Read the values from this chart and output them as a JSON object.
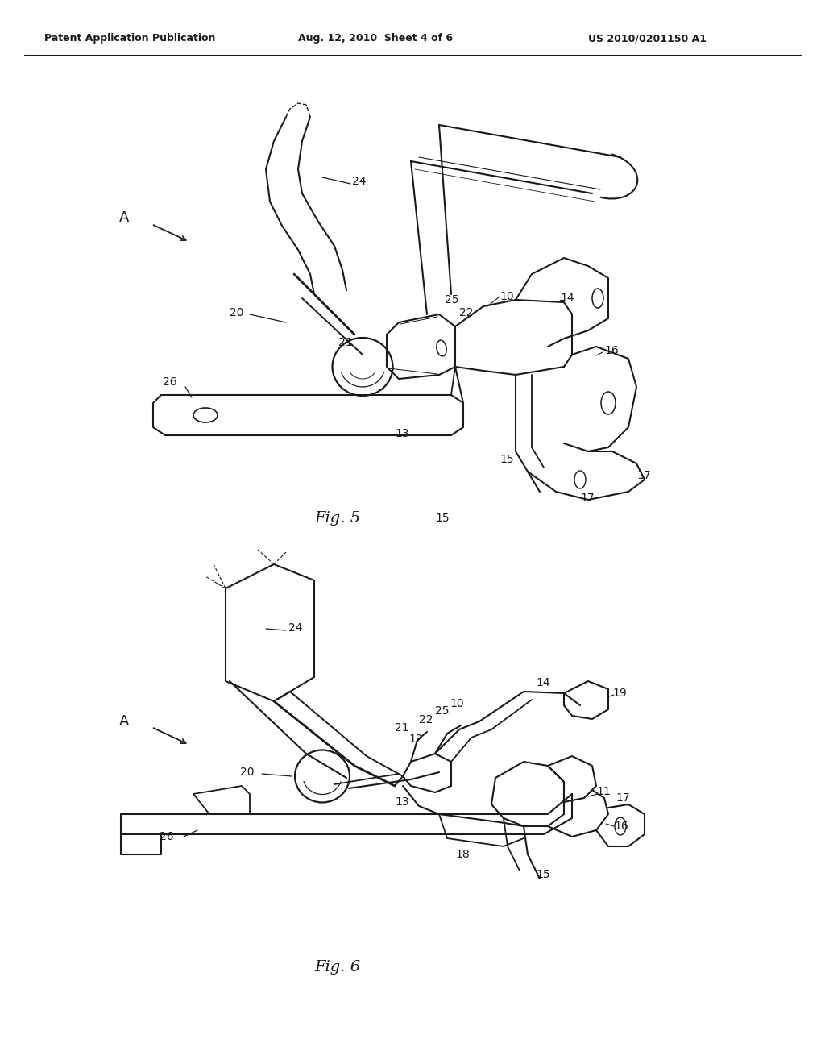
{
  "bg_color": "#ffffff",
  "header_left": "Patent Application Publication",
  "header_mid": "Aug. 12, 2010  Sheet 4 of 6",
  "header_right": "US 2010/0201150 A1",
  "fig5_label": "Fig. 5",
  "fig6_label": "Fig. 6",
  "line_color": "#1a1a1a"
}
